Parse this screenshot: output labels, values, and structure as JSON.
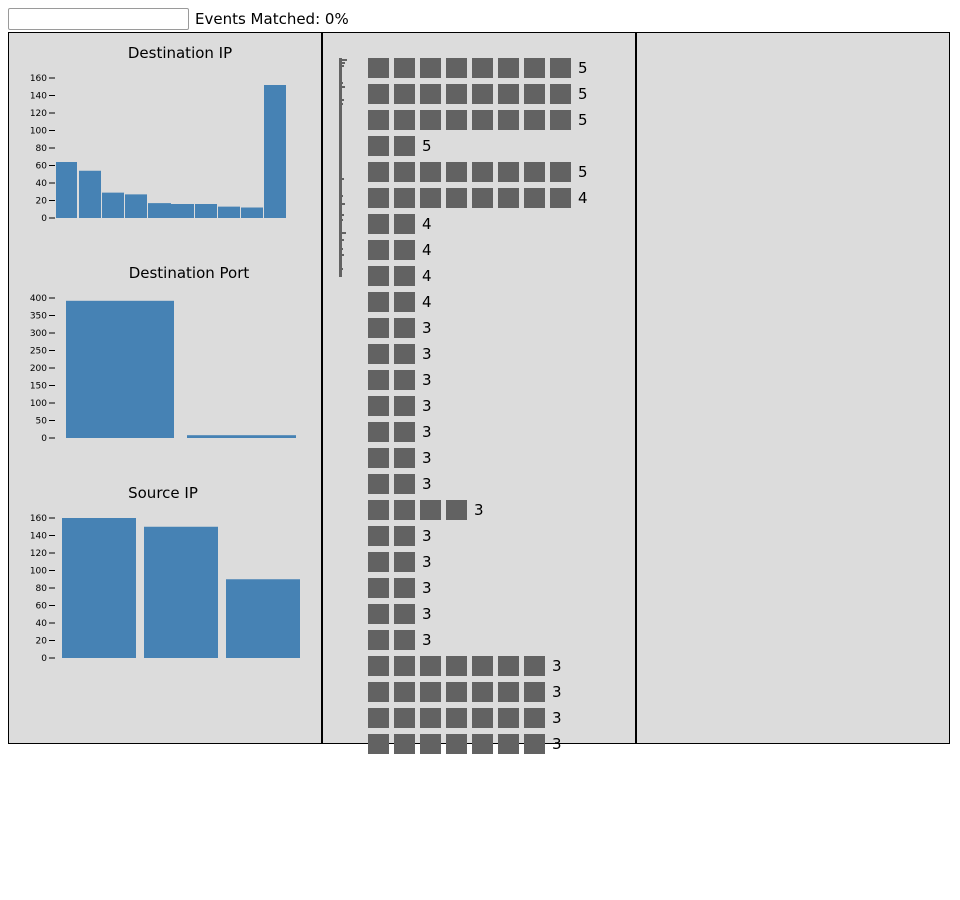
{
  "search": {
    "value": "",
    "placeholder": ""
  },
  "status": {
    "events_matched": "Events Matched: 0%"
  },
  "colors": {
    "bar": "#4682b4",
    "block": "#626262",
    "panel_bg": "#dcdcdc"
  },
  "chart_data": [
    {
      "type": "bar",
      "title": "Destination IP",
      "xlabel": "",
      "ylabel": "",
      "ylim": [
        0,
        160
      ],
      "yticks": [
        0,
        20,
        40,
        60,
        80,
        100,
        120,
        140,
        160
      ],
      "values": [
        64,
        54,
        29,
        27,
        17,
        16,
        16,
        13,
        12,
        152
      ],
      "grid": false
    },
    {
      "type": "bar",
      "title": "Destination Port",
      "xlabel": "",
      "ylabel": "",
      "ylim": [
        0,
        400
      ],
      "yticks": [
        0,
        50,
        100,
        150,
        200,
        250,
        300,
        350,
        400
      ],
      "values": [
        392,
        8
      ],
      "grid": false
    },
    {
      "type": "bar",
      "title": "Source IP",
      "xlabel": "",
      "ylabel": "",
      "ylim": [
        0,
        160
      ],
      "yticks": [
        0,
        20,
        40,
        60,
        80,
        100,
        120,
        140,
        160
      ],
      "values": [
        160,
        150,
        90
      ],
      "grid": false
    }
  ],
  "blocks": {
    "rows": [
      {
        "squares": 8,
        "count": "5"
      },
      {
        "squares": 8,
        "count": "5"
      },
      {
        "squares": 8,
        "count": "5"
      },
      {
        "squares": 2,
        "count": "5"
      },
      {
        "squares": 8,
        "count": "5"
      },
      {
        "squares": 8,
        "count": "4"
      },
      {
        "squares": 2,
        "count": "4"
      },
      {
        "squares": 2,
        "count": "4"
      },
      {
        "squares": 2,
        "count": "4"
      },
      {
        "squares": 2,
        "count": "4"
      },
      {
        "squares": 2,
        "count": "3"
      },
      {
        "squares": 2,
        "count": "3"
      },
      {
        "squares": 2,
        "count": "3"
      },
      {
        "squares": 2,
        "count": "3"
      },
      {
        "squares": 2,
        "count": "3"
      },
      {
        "squares": 2,
        "count": "3"
      },
      {
        "squares": 2,
        "count": "3"
      },
      {
        "squares": 4,
        "count": "3"
      },
      {
        "squares": 2,
        "count": "3"
      },
      {
        "squares": 2,
        "count": "3"
      },
      {
        "squares": 2,
        "count": "3"
      },
      {
        "squares": 2,
        "count": "3"
      },
      {
        "squares": 2,
        "count": "3"
      },
      {
        "squares": 7,
        "count": "3"
      },
      {
        "squares": 7,
        "count": "3"
      },
      {
        "squares": 7,
        "count": "3"
      },
      {
        "squares": 7,
        "count": "3"
      }
    ]
  }
}
